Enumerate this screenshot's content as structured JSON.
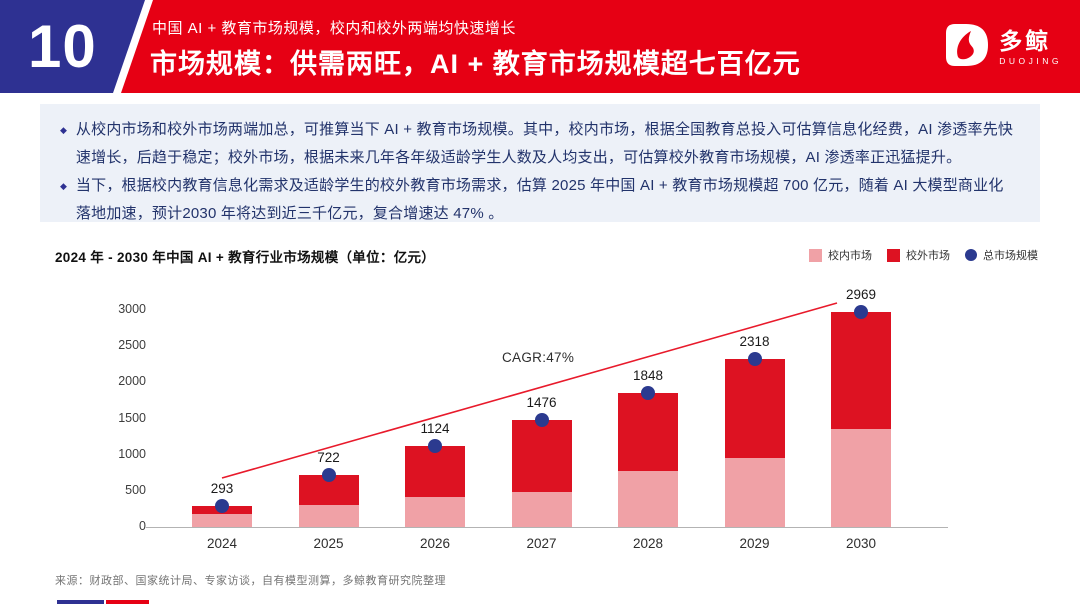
{
  "page": {
    "number": "10"
  },
  "header": {
    "kicker": "中国 AI + 教育市场规模，校内和校外两端均快速增长",
    "title": "市场规模：供需两旺，AI + 教育市场规模超七百亿元",
    "logo": {
      "name": "多鲸",
      "sub": "DUOJING"
    }
  },
  "summary": {
    "bullets": [
      "从校内市场和校外市场两端加总，可推算当下 AI + 教育市场规模。其中，校内市场，根据全国教育总投入可估算信息化经费，AI 渗透率先快速增长，后趋于稳定；校外市场，根据未来几年各年级适龄学生人数及人均支出，可估算校外教育市场规模，AI 渗透率正迅猛提升。",
      "当下，根据校内教育信息化需求及适龄学生的校外教育市场需求，估算 2025 年中国 AI + 教育市场规模超 700 亿元，随着 AI 大模型商业化落地加速，预计2030 年将达到近三千亿元，复合增速达 47% 。"
    ]
  },
  "chart": {
    "title": "2024 年 - 2030 年中国 AI + 教育行业市场规模（单位：亿元）",
    "source": "来源：财政部、国家统计局、专家访谈，自有模型测算，多鲸教育研究院整理"
  },
  "chart_data": {
    "type": "bar",
    "stacked": true,
    "title": "2024 年 - 2030 年中国 AI + 教育行业市场规模（单位：亿元）",
    "unit": "亿元",
    "categories": [
      "2024",
      "2025",
      "2026",
      "2027",
      "2028",
      "2029",
      "2030"
    ],
    "series": [
      {
        "name": "校内市场",
        "color": "#f0a1a6",
        "values": [
          180,
          300,
          420,
          490,
          775,
          950,
          1360
        ]
      },
      {
        "name": "校外市场",
        "color": "#dd1222",
        "values": [
          113,
          422,
          704,
          986,
          1073,
          1368,
          1609
        ]
      }
    ],
    "totals": [
      293,
      722,
      1124,
      1476,
      1848,
      2318,
      2969
    ],
    "total_marker": {
      "name": "总市场规模",
      "color": "#2b3a8f"
    },
    "legend": [
      {
        "label": "校内市场",
        "color": "#f0a1a6",
        "shape": "square"
      },
      {
        "label": "校外市场",
        "color": "#dd1222",
        "shape": "square"
      },
      {
        "label": "总市场规模",
        "color": "#2b3a8f",
        "shape": "circle"
      }
    ],
    "annotation": "CAGR:47%",
    "ylim": [
      0,
      3000
    ],
    "yticks": [
      0,
      500,
      1000,
      1500,
      2000,
      2500,
      3000
    ],
    "grid": false,
    "legend_position": "top-right",
    "trend_line_color": "#e81a2b"
  }
}
